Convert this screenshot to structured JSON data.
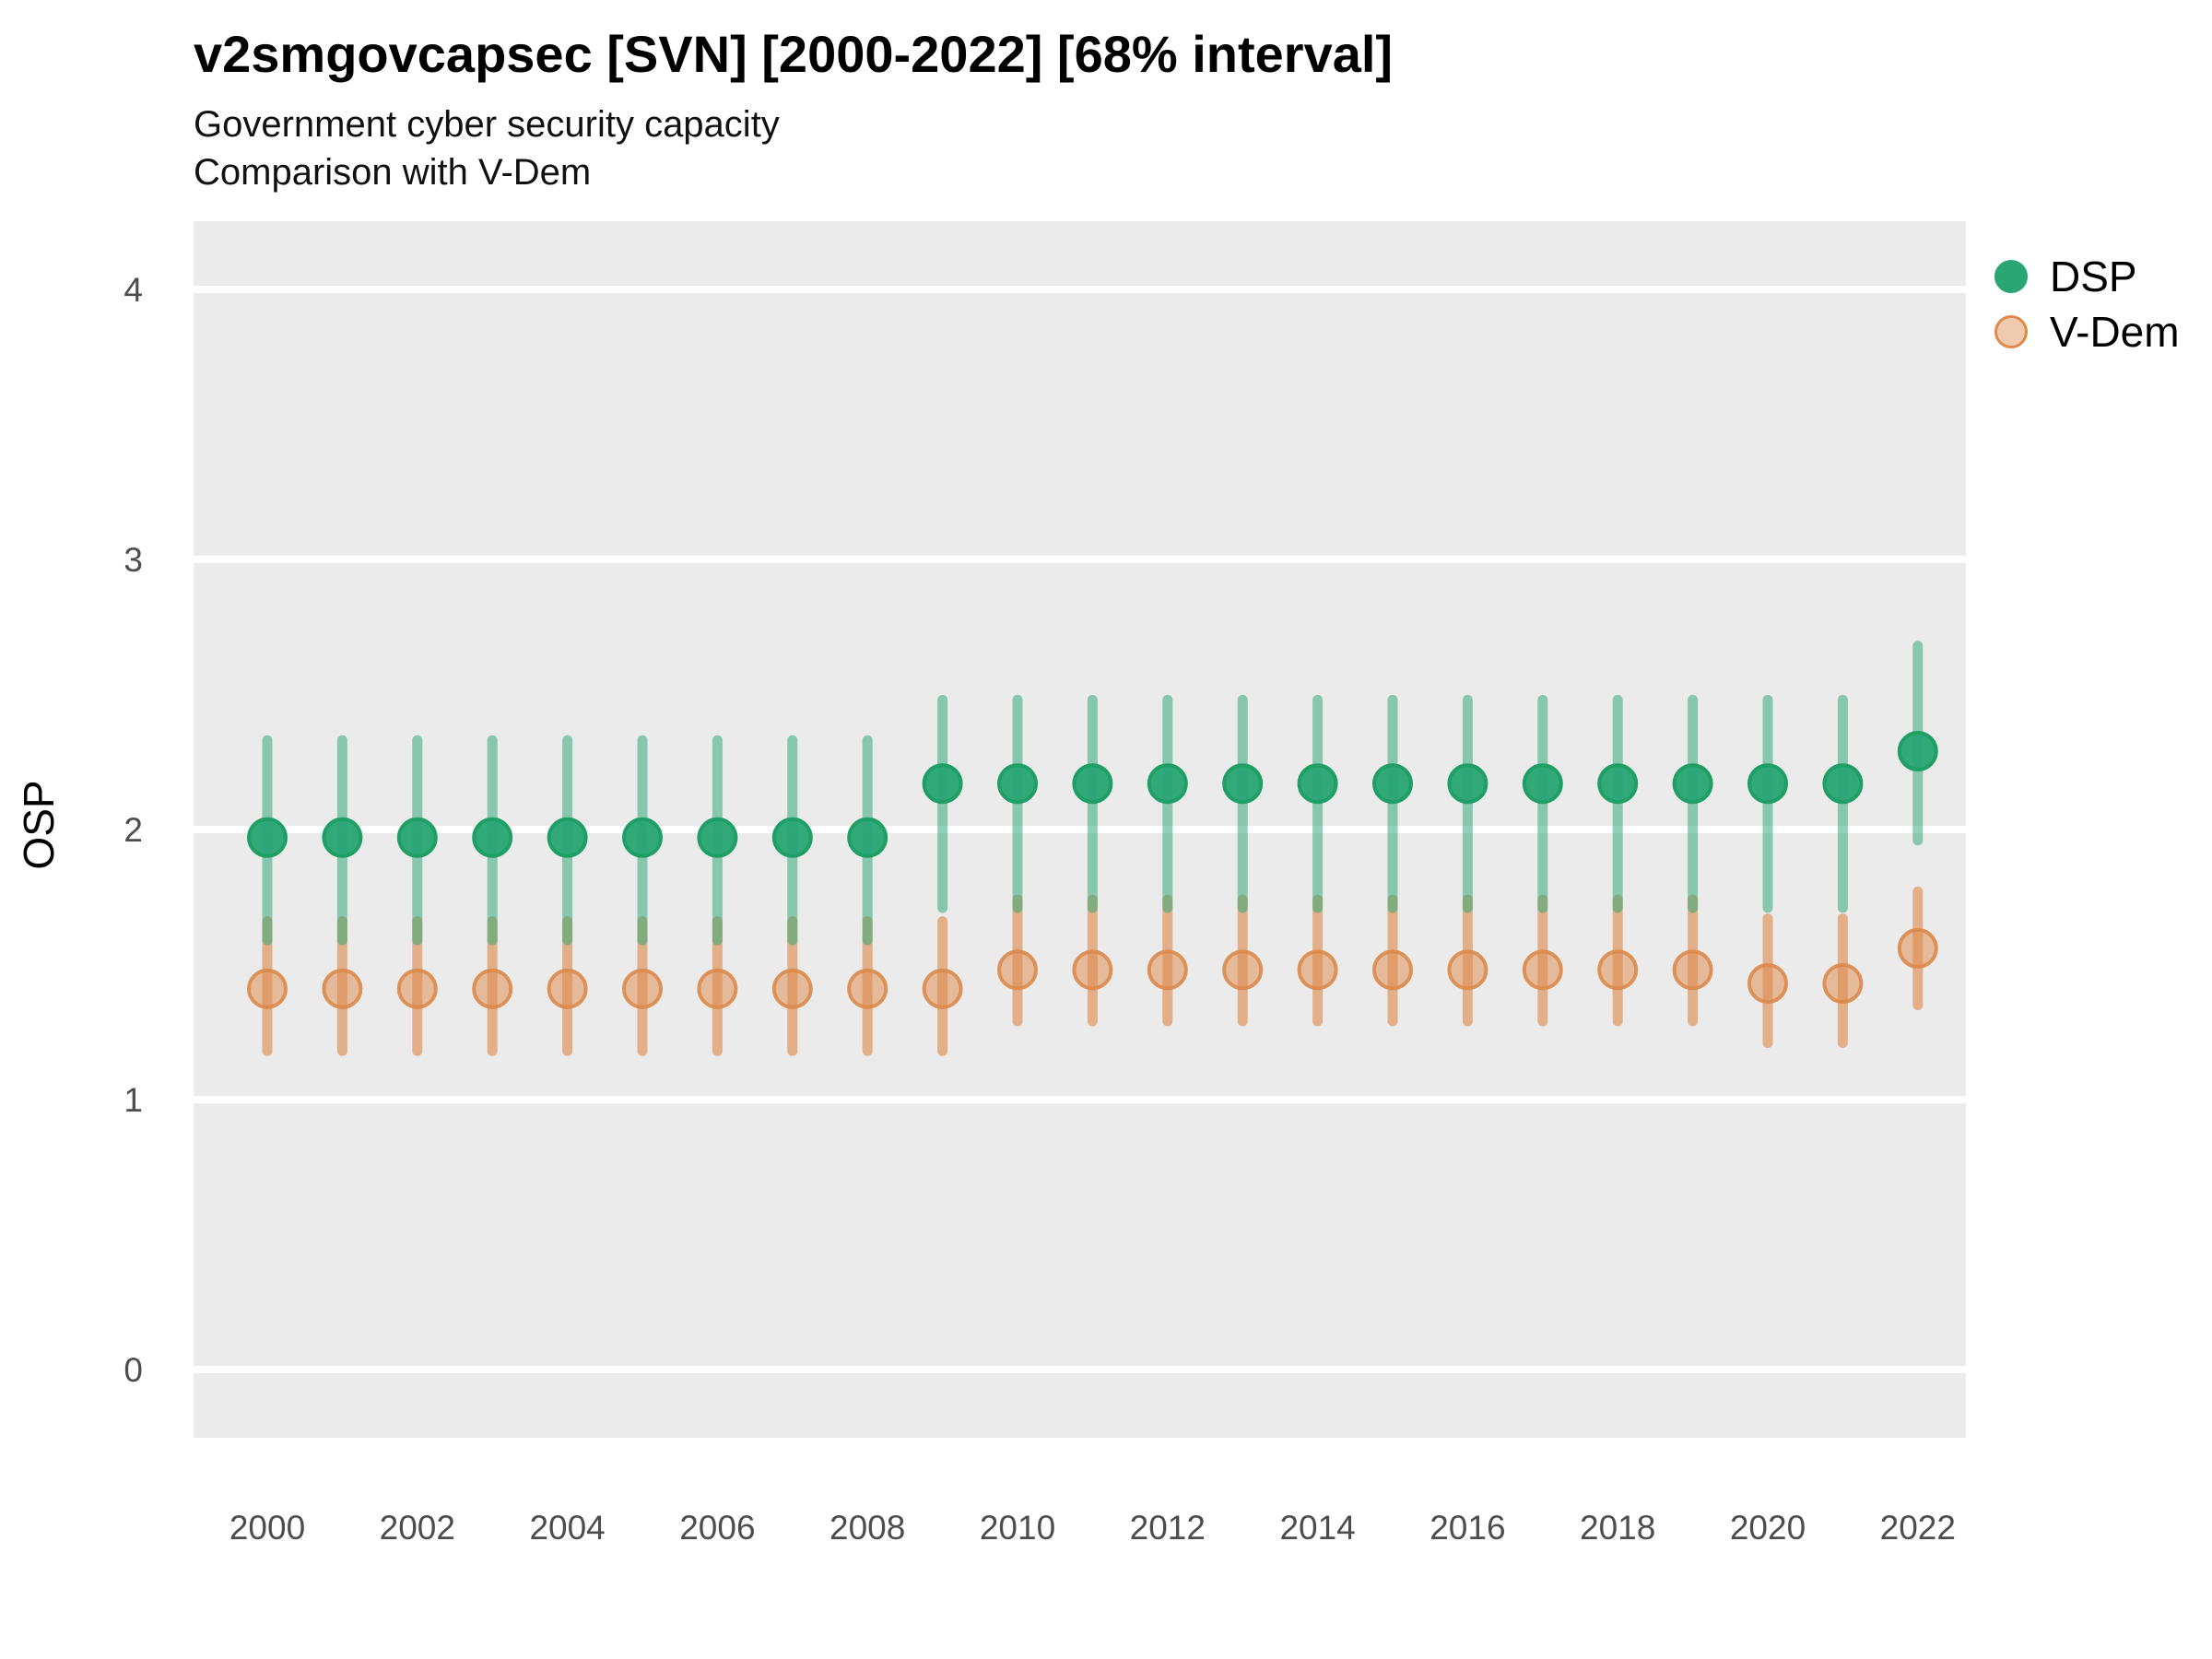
{
  "header": {
    "title": "v2smgovcapsec [SVN] [2000-2022] [68% interval]",
    "subtitle1": "Government cyber security capacity",
    "subtitle2": "Comparison with V-Dem"
  },
  "axes": {
    "y_label": "OSP",
    "y_ticks": [
      0,
      1,
      2,
      3,
      4
    ],
    "x_ticks": [
      2000,
      2002,
      2004,
      2006,
      2008,
      2010,
      2012,
      2014,
      2016,
      2018,
      2020,
      2022
    ]
  },
  "legend": {
    "items": [
      {
        "label": "DSP",
        "color": "#2aa675"
      },
      {
        "label": "V-Dem",
        "color": "#dd8a4c"
      }
    ]
  },
  "colors": {
    "panel_bg": "#ebebeb",
    "grid": "#ffffff",
    "tick_text": "#4d4d4d"
  },
  "chart_data": {
    "type": "scatter",
    "title": "v2smgovcapsec [SVN] [2000-2022] [68% interval]",
    "subtitle": "Government cyber security capacity — Comparison with V-Dem",
    "xlabel": "",
    "ylabel": "OSP",
    "ylim": [
      0,
      4
    ],
    "interval": "68%",
    "grid": "major-horizontal-white-on-grey",
    "legend_position": "right",
    "x": [
      2000,
      2001,
      2002,
      2003,
      2004,
      2005,
      2006,
      2007,
      2008,
      2009,
      2010,
      2011,
      2012,
      2013,
      2014,
      2015,
      2016,
      2017,
      2018,
      2019,
      2020,
      2021,
      2022
    ],
    "series": [
      {
        "name": "DSP",
        "color": "#2aa675",
        "point_stroke": "#1f9e66",
        "bar_opacity": 0.52,
        "point_fill_opacity": 0.97,
        "est": [
          1.97,
          1.97,
          1.97,
          1.97,
          1.97,
          1.97,
          1.97,
          1.97,
          1.97,
          2.17,
          2.17,
          2.17,
          2.17,
          2.17,
          2.17,
          2.17,
          2.17,
          2.17,
          2.17,
          2.17,
          2.17,
          2.17,
          2.29
        ],
        "lo": [
          1.59,
          1.59,
          1.59,
          1.59,
          1.59,
          1.59,
          1.59,
          1.59,
          1.59,
          1.71,
          1.71,
          1.71,
          1.71,
          1.71,
          1.71,
          1.71,
          1.71,
          1.71,
          1.71,
          1.71,
          1.71,
          1.71,
          1.96
        ],
        "hi": [
          2.33,
          2.33,
          2.33,
          2.33,
          2.33,
          2.33,
          2.33,
          2.33,
          2.33,
          2.48,
          2.48,
          2.48,
          2.48,
          2.48,
          2.48,
          2.48,
          2.48,
          2.48,
          2.48,
          2.48,
          2.48,
          2.48,
          2.68
        ]
      },
      {
        "name": "V-Dem",
        "color": "#dd8a4c",
        "point_stroke": "#dc8a4b",
        "bar_opacity": 0.62,
        "point_fill_opacity": 0.5,
        "est": [
          1.41,
          1.41,
          1.41,
          1.41,
          1.41,
          1.41,
          1.41,
          1.41,
          1.41,
          1.41,
          1.48,
          1.48,
          1.48,
          1.48,
          1.48,
          1.48,
          1.48,
          1.48,
          1.48,
          1.48,
          1.43,
          1.43,
          1.56
        ],
        "lo": [
          1.18,
          1.18,
          1.18,
          1.18,
          1.18,
          1.18,
          1.18,
          1.18,
          1.18,
          1.18,
          1.29,
          1.29,
          1.29,
          1.29,
          1.29,
          1.29,
          1.29,
          1.29,
          1.29,
          1.29,
          1.21,
          1.21,
          1.35
        ],
        "hi": [
          1.66,
          1.66,
          1.66,
          1.66,
          1.66,
          1.66,
          1.66,
          1.66,
          1.66,
          1.66,
          1.74,
          1.74,
          1.74,
          1.74,
          1.74,
          1.74,
          1.74,
          1.74,
          1.74,
          1.74,
          1.67,
          1.67,
          1.77
        ]
      }
    ]
  }
}
